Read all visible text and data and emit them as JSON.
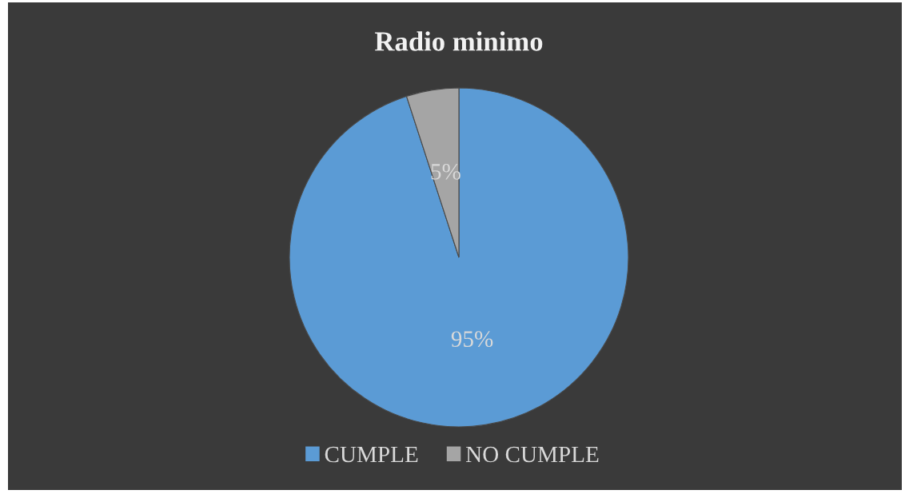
{
  "chart_data": {
    "type": "pie",
    "title": "Radio minimo",
    "categories": [
      "CUMPLE",
      "NO CUMPLE"
    ],
    "values": [
      95,
      5
    ],
    "colors": [
      "#5b9bd5",
      "#a5a5a5"
    ],
    "value_labels": [
      "95%",
      "5%"
    ],
    "legend": "bottom"
  }
}
